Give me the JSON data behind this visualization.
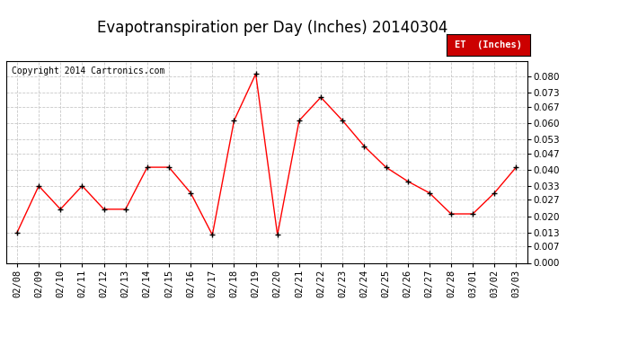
{
  "title": "Evapotranspiration per Day (Inches) 20140304",
  "copyright": "Copyright 2014 Cartronics.com",
  "legend_label": "ET  (Inches)",
  "dates": [
    "02/08",
    "02/09",
    "02/10",
    "02/11",
    "02/12",
    "02/13",
    "02/14",
    "02/15",
    "02/16",
    "02/17",
    "02/18",
    "02/19",
    "02/20",
    "02/21",
    "02/22",
    "02/23",
    "02/24",
    "02/25",
    "02/26",
    "02/27",
    "02/28",
    "03/01",
    "03/02",
    "03/03"
  ],
  "values": [
    0.013,
    0.033,
    0.023,
    0.033,
    0.023,
    0.023,
    0.041,
    0.041,
    0.03,
    0.012,
    0.061,
    0.081,
    0.012,
    0.061,
    0.071,
    0.061,
    0.05,
    0.041,
    0.035,
    0.03,
    0.021,
    0.021,
    0.03,
    0.041
  ],
  "ylim": [
    0.0,
    0.0867
  ],
  "yticks": [
    0.0,
    0.007,
    0.013,
    0.02,
    0.027,
    0.033,
    0.04,
    0.047,
    0.053,
    0.06,
    0.067,
    0.073,
    0.08
  ],
  "line_color": "red",
  "marker": "+",
  "marker_color": "black",
  "background_color": "#ffffff",
  "grid_color": "#c8c8c8",
  "title_fontsize": 12,
  "copyright_fontsize": 7,
  "tick_fontsize": 7.5,
  "legend_bg": "#cc0000",
  "legend_fg": "#ffffff"
}
